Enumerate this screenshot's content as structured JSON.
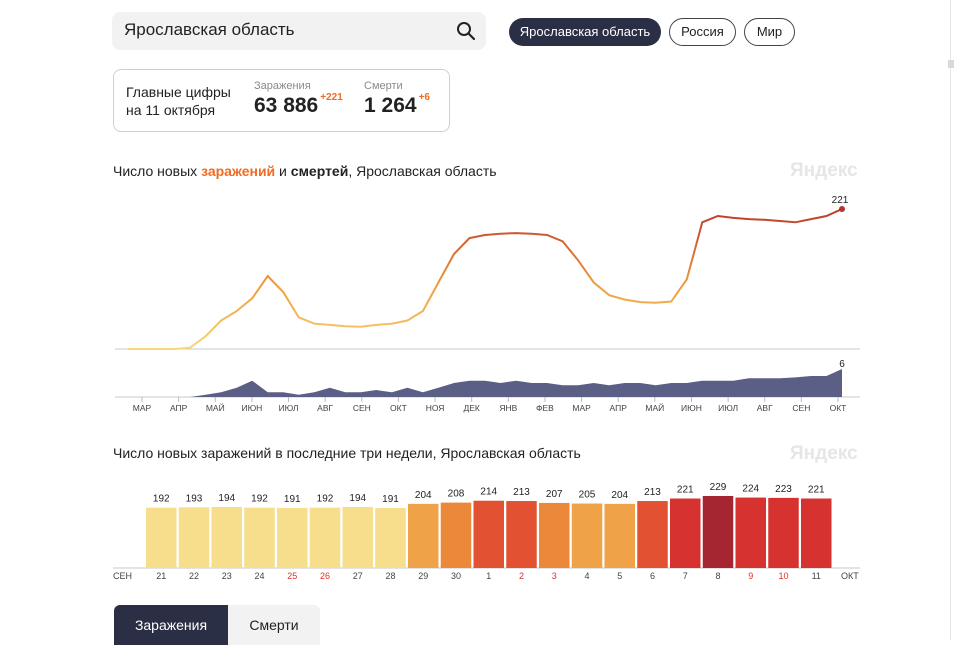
{
  "search": {
    "value": "Ярославская область"
  },
  "region_tabs": [
    "Ярославская область",
    "Россия",
    "Мир"
  ],
  "summary": {
    "title_line1": "Главные цифры",
    "title_line2": "на 11 октября",
    "infections_label": "Заражения",
    "infections_value": "63 886",
    "infections_delta": "+221",
    "deaths_label": "Смерти",
    "deaths_value": "1 264",
    "deaths_delta": "+6"
  },
  "chart1": {
    "title_prefix": "Число новых ",
    "title_infections": "заражений",
    "title_mid": " и ",
    "title_deaths": "смертей",
    "title_suffix": ", Ярославская область",
    "watermark": "Яндекс"
  },
  "chart2": {
    "title": "Число новых заражений в последние три недели, Ярославская область",
    "watermark": "Яндекс"
  },
  "bottom_tabs": {
    "active": "Заражения",
    "inactive": "Смерти"
  },
  "colors": {
    "accent": "#f06b23",
    "dark": "#2b2f45",
    "deaths_fill": "#5b5f86"
  },
  "chart_data": [
    {
      "type": "line",
      "title": "Число новых заражений и смертей, Ярославская область",
      "x_tick_labels": [
        "МАР",
        "АПР",
        "МАЙ",
        "ИЮН",
        "ИЮЛ",
        "АВГ",
        "СЕН",
        "ОКТ",
        "НОЯ",
        "ДЕК",
        "ЯНВ",
        "ФЕВ",
        "МАР",
        "АПР",
        "МАЙ",
        "ИЮН",
        "ИЮЛ",
        "АВГ",
        "СЕН",
        "ОКТ"
      ],
      "series": [
        {
          "name": "Заражения",
          "values": [
            0,
            0,
            0,
            0,
            2,
            20,
            45,
            60,
            80,
            115,
            90,
            50,
            40,
            38,
            36,
            35,
            38,
            40,
            45,
            60,
            105,
            150,
            175,
            180,
            182,
            183,
            182,
            180,
            170,
            140,
            105,
            85,
            78,
            74,
            73,
            75,
            110,
            200,
            210,
            207,
            205,
            204,
            202,
            200,
            205,
            210,
            221
          ],
          "last_label": "221"
        },
        {
          "name": "Смерти",
          "values": [
            0,
            0,
            0,
            0,
            0,
            0.5,
            1,
            2,
            3.5,
            1,
            1,
            0.5,
            1,
            2,
            1,
            1,
            1.5,
            1,
            2,
            1,
            2,
            3,
            3.5,
            3.5,
            3,
            3.5,
            3,
            3,
            2.5,
            2.5,
            3,
            2.5,
            3,
            3,
            2.5,
            3,
            3,
            3.5,
            3.5,
            3.5,
            4,
            4,
            4,
            4.2,
            4.5,
            4.5,
            6
          ],
          "last_label": "6"
        }
      ]
    },
    {
      "type": "bar",
      "title": "Число новых заражений в последние три недели, Ярославская область",
      "categories": [
        "21",
        "22",
        "23",
        "24",
        "25",
        "26",
        "27",
        "28",
        "29",
        "30",
        "1",
        "2",
        "3",
        "4",
        "5",
        "6",
        "7",
        "8",
        "9",
        "10",
        "11"
      ],
      "values": [
        192,
        193,
        194,
        192,
        191,
        192,
        194,
        191,
        204,
        208,
        214,
        213,
        207,
        205,
        204,
        213,
        221,
        229,
        224,
        223,
        221
      ],
      "weekend_categories": [
        "25",
        "26",
        "2",
        "3",
        "9",
        "10"
      ],
      "month_start_label": "СЕН",
      "month_end_label": "ОКТ"
    }
  ]
}
